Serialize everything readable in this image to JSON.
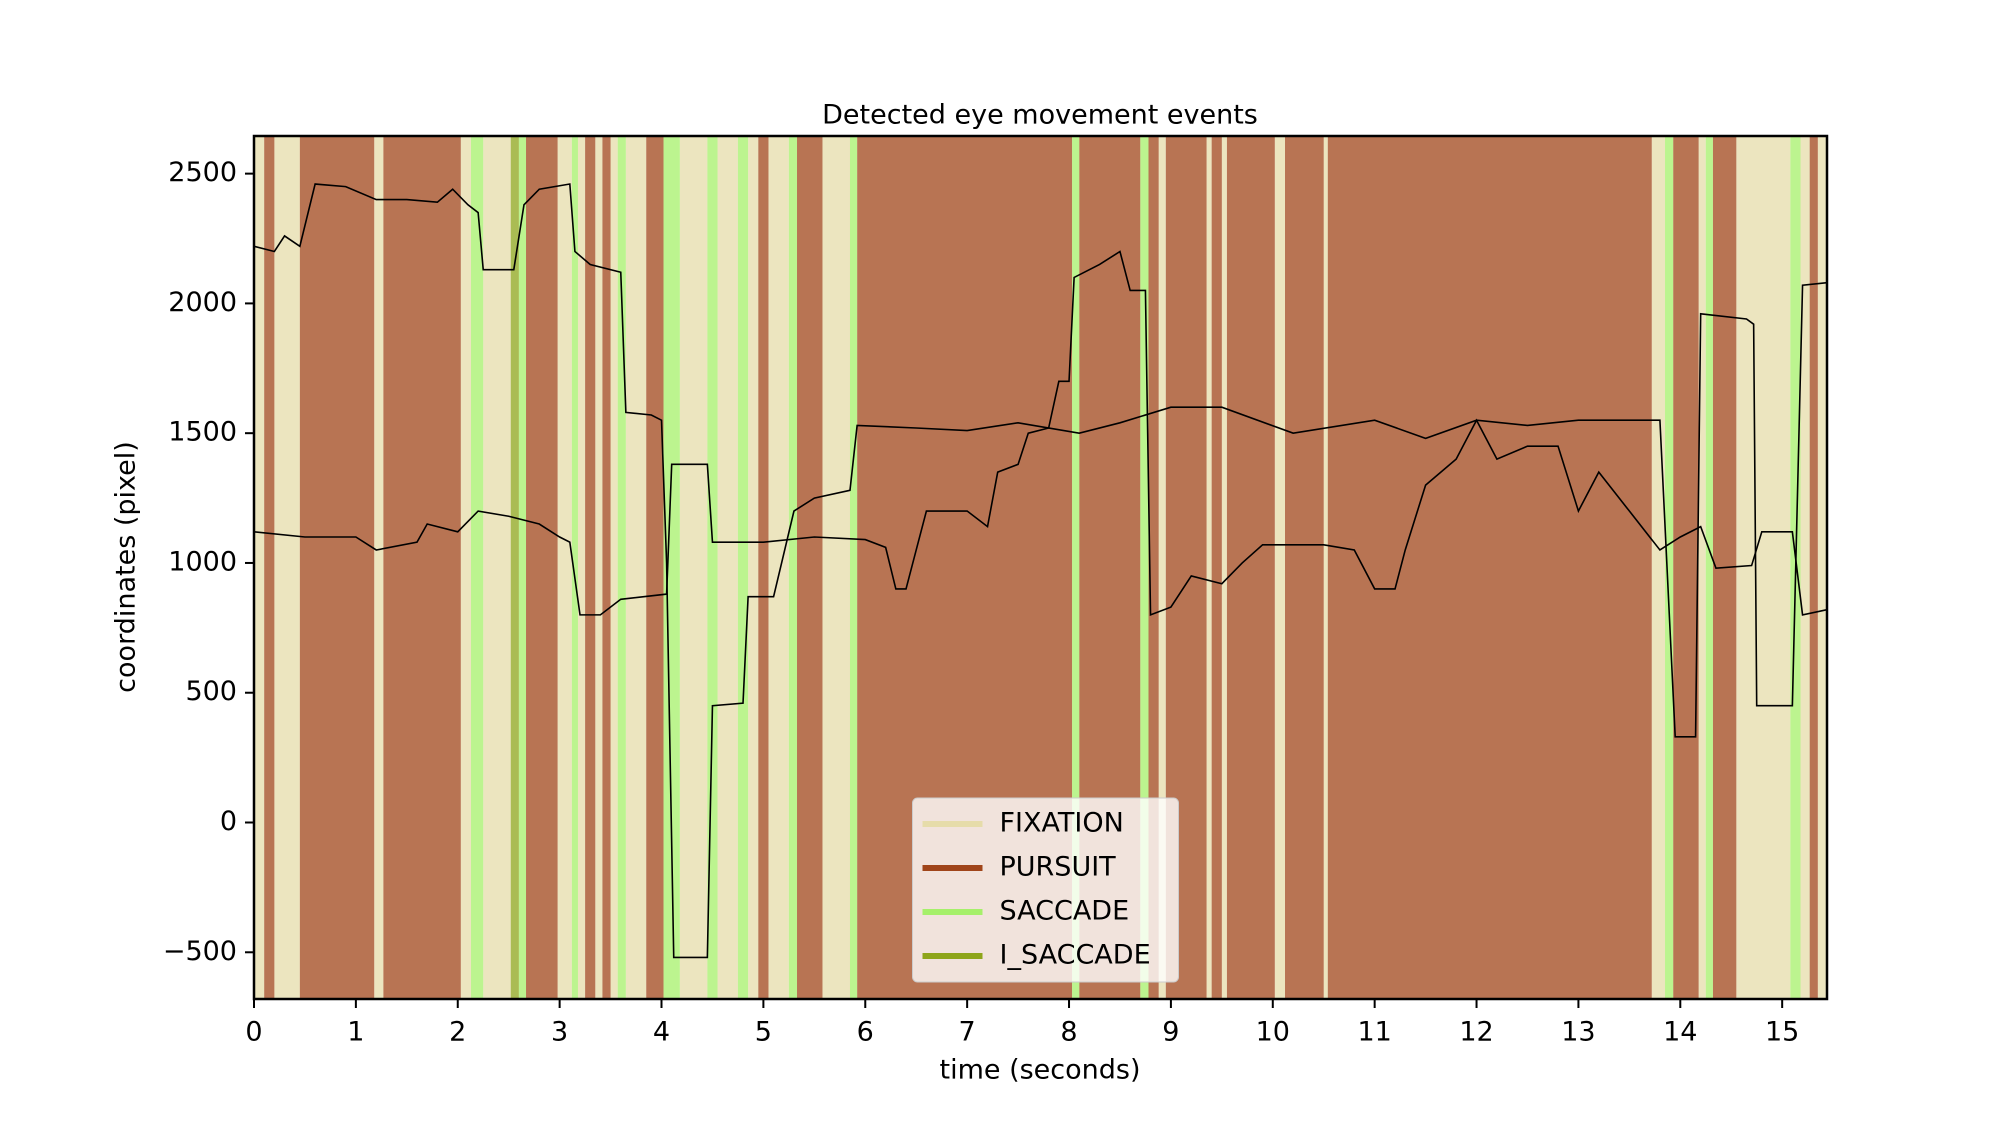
{
  "chart_data": {
    "type": "events",
    "title": "Detected eye movement events",
    "xlabel": "time (seconds)",
    "ylabel": "coordinates (pixel)",
    "xlim": [
      0,
      15.44
    ],
    "ylim": [
      -680,
      2645
    ],
    "xticks": [
      0,
      1,
      2,
      3,
      4,
      5,
      6,
      7,
      8,
      9,
      10,
      11,
      12,
      13,
      14,
      15
    ],
    "yticks": [
      {
        "value": -500,
        "label": "−500"
      },
      0,
      500,
      1000,
      1500,
      2000,
      2500
    ],
    "legend": "lower center",
    "series": [
      {
        "name": "FIXATION",
        "color": "#e6dcaa",
        "intervals": [
          [
            0,
            0.1
          ],
          [
            0.2,
            0.45
          ],
          [
            1.18,
            1.27
          ],
          [
            2.03,
            2.13
          ],
          [
            2.25,
            2.52
          ],
          [
            2.98,
            3.12
          ],
          [
            3.18,
            3.25
          ],
          [
            3.35,
            3.42
          ],
          [
            3.5,
            3.57
          ],
          [
            3.65,
            3.85
          ],
          [
            4.18,
            4.45
          ],
          [
            4.55,
            4.75
          ],
          [
            4.85,
            4.95
          ],
          [
            5.05,
            5.25
          ],
          [
            5.58,
            5.85
          ],
          [
            8.88,
            8.95
          ],
          [
            9.35,
            9.4
          ],
          [
            9.5,
            9.55
          ],
          [
            10.02,
            10.12
          ],
          [
            10.5,
            10.54
          ],
          [
            13.72,
            13.85
          ],
          [
            14.18,
            14.25
          ],
          [
            14.55,
            15.08
          ],
          [
            15.18,
            15.27
          ],
          [
            15.35,
            15.44
          ]
        ]
      },
      {
        "name": "PURSUIT",
        "color": "#a0451a",
        "intervals": [
          [
            0.1,
            0.2
          ],
          [
            0.45,
            1.18
          ],
          [
            1.27,
            2.03
          ],
          [
            2.67,
            2.98
          ],
          [
            3.25,
            3.35
          ],
          [
            3.42,
            3.5
          ],
          [
            3.85,
            4.02
          ],
          [
            4.95,
            5.05
          ],
          [
            5.33,
            5.58
          ],
          [
            5.92,
            8.03
          ],
          [
            8.1,
            8.7
          ],
          [
            8.78,
            8.88
          ],
          [
            8.95,
            9.35
          ],
          [
            9.4,
            9.5
          ],
          [
            9.55,
            10.02
          ],
          [
            10.12,
            10.5
          ],
          [
            10.54,
            13.72
          ],
          [
            13.93,
            14.18
          ],
          [
            14.32,
            14.55
          ],
          [
            15.27,
            15.35
          ]
        ]
      },
      {
        "name": "SACCADE",
        "color": "#a6f06a",
        "intervals": [
          [
            2.13,
            2.25
          ],
          [
            2.6,
            2.67
          ],
          [
            3.12,
            3.18
          ],
          [
            3.57,
            3.65
          ],
          [
            4.02,
            4.18
          ],
          [
            4.45,
            4.55
          ],
          [
            4.75,
            4.85
          ],
          [
            5.25,
            5.33
          ],
          [
            5.85,
            5.92
          ],
          [
            8.03,
            8.1
          ],
          [
            8.7,
            8.78
          ],
          [
            13.85,
            13.93
          ],
          [
            14.25,
            14.32
          ],
          [
            15.08,
            15.18
          ]
        ]
      },
      {
        "name": "I_SACCADE",
        "color": "#8ea51a",
        "intervals": [
          [
            2.52,
            2.6
          ]
        ]
      }
    ],
    "lines": [
      {
        "color": "#000000",
        "x": [
          0,
          0.2,
          0.3,
          0.45,
          0.6,
          0.9,
          1.2,
          1.5,
          1.8,
          1.95,
          2.1,
          2.2,
          2.25,
          2.55,
          2.65,
          2.8,
          3.1,
          3.15,
          3.3,
          3.6,
          3.65,
          3.9,
          4.0,
          4.05,
          4.12,
          4.45,
          4.5,
          4.8,
          4.85,
          5.1,
          5.3,
          5.5,
          5.85,
          5.92,
          6.5,
          7.0,
          7.5,
          8.1,
          8.5,
          9.0,
          9.5,
          10.2,
          11.0,
          11.5,
          12.0,
          12.5,
          13.0,
          13.8,
          13.95,
          14.15,
          14.2,
          14.65,
          14.72,
          14.75,
          15.1,
          15.2,
          15.44
        ],
        "values": [
          2220,
          2200,
          2260,
          2220,
          2460,
          2450,
          2400,
          2400,
          2390,
          2440,
          2380,
          2350,
          2130,
          2130,
          2380,
          2440,
          2460,
          2200,
          2150,
          2120,
          1580,
          1570,
          1550,
          1000,
          -520,
          -520,
          450,
          460,
          870,
          870,
          1200,
          1250,
          1280,
          1530,
          1520,
          1510,
          1540,
          1500,
          1540,
          1600,
          1600,
          1500,
          1550,
          1480,
          1550,
          1530,
          1550,
          1550,
          330,
          330,
          1960,
          1940,
          1920,
          450,
          450,
          2070,
          2080
        ]
      },
      {
        "color": "#000000",
        "x": [
          0,
          0.5,
          1.0,
          1.2,
          1.6,
          1.7,
          2.0,
          2.2,
          2.5,
          2.8,
          3.0,
          3.1,
          3.2,
          3.4,
          3.6,
          4.05,
          4.1,
          4.45,
          4.5,
          5.0,
          5.5,
          6.0,
          6.2,
          6.3,
          6.4,
          6.5,
          6.6,
          7.0,
          7.2,
          7.3,
          7.5,
          7.6,
          7.8,
          7.9,
          8.0,
          8.05,
          8.3,
          8.5,
          8.6,
          8.75,
          8.8,
          9.0,
          9.2,
          9.5,
          9.7,
          9.9,
          10.5,
          10.8,
          11.0,
          11.2,
          11.3,
          11.5,
          11.8,
          12.0,
          12.2,
          12.5,
          12.8,
          13.0,
          13.2,
          13.5,
          13.8,
          14.0,
          14.2,
          14.35,
          14.7,
          14.8,
          15.1,
          15.2,
          15.44
        ],
        "values": [
          1120,
          1100,
          1100,
          1050,
          1080,
          1150,
          1120,
          1200,
          1180,
          1150,
          1100,
          1080,
          800,
          800,
          860,
          880,
          1380,
          1380,
          1080,
          1080,
          1100,
          1090,
          1060,
          900,
          900,
          1050,
          1200,
          1200,
          1140,
          1350,
          1380,
          1500,
          1520,
          1700,
          1700,
          2100,
          2150,
          2200,
          2050,
          2050,
          800,
          830,
          950,
          920,
          1000,
          1070,
          1070,
          1050,
          900,
          900,
          1050,
          1300,
          1400,
          1550,
          1400,
          1450,
          1450,
          1200,
          1350,
          1200,
          1050,
          1100,
          1140,
          980,
          990,
          1120,
          1120,
          800,
          820
        ]
      }
    ]
  }
}
